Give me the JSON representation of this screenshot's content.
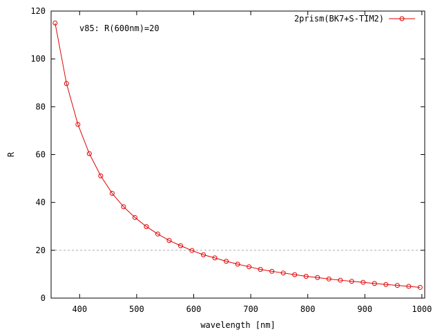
{
  "chart_data": {
    "type": "line",
    "xlabel": "wavelength [nm]",
    "ylabel": "R",
    "xlim": [
      350,
      1005
    ],
    "ylim": [
      0,
      120
    ],
    "xticks": [
      400,
      500,
      600,
      700,
      800,
      900,
      1000
    ],
    "yticks": [
      0,
      20,
      40,
      60,
      80,
      100,
      120
    ],
    "annotation": "v85: R(600nm)=20",
    "reference_line": {
      "y": 20,
      "style": "dashed"
    },
    "legend_position": "top-right",
    "series": [
      {
        "name": "2prism(BK7+S-TIM2)",
        "color": "#e00000",
        "marker": "circle",
        "x": [
          357,
          377,
          397,
          417,
          437,
          457,
          477,
          497,
          517,
          537,
          557,
          577,
          597,
          617,
          637,
          657,
          677,
          697,
          717,
          737,
          757,
          777,
          797,
          817,
          837,
          857,
          877,
          897,
          917,
          937,
          957,
          977,
          997
        ],
        "y": [
          115,
          89.7,
          72.6,
          60.4,
          51.1,
          43.8,
          38.2,
          33.7,
          29.9,
          26.8,
          24.1,
          21.9,
          19.9,
          18.1,
          16.8,
          15.4,
          14.2,
          13.1,
          12.0,
          11.2,
          10.5,
          9.8,
          9.1,
          8.6,
          8.0,
          7.5,
          7.0,
          6.6,
          6.1,
          5.7,
          5.3,
          4.9,
          4.5
        ]
      }
    ]
  }
}
